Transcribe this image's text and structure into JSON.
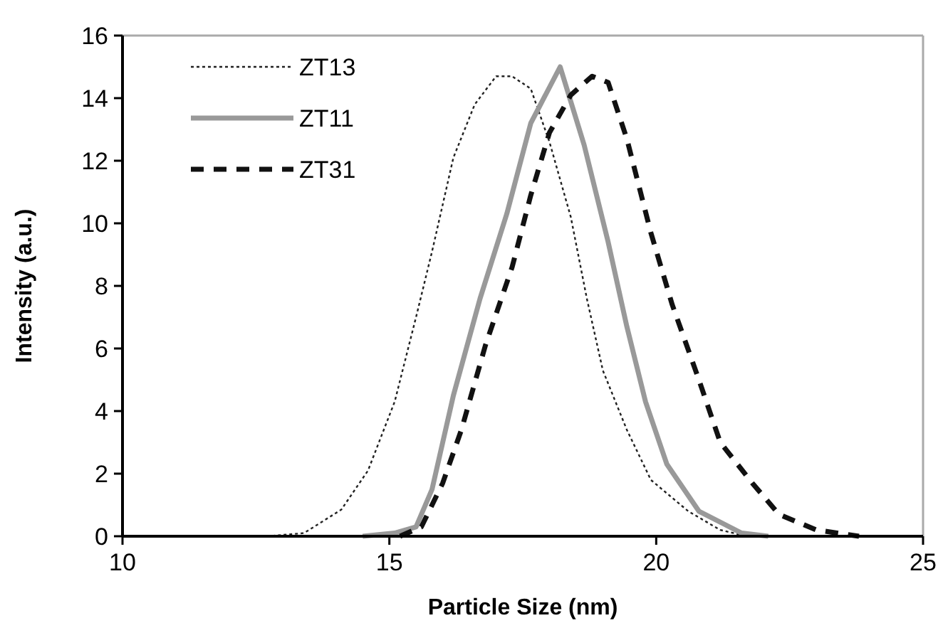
{
  "chart_data": {
    "type": "line",
    "xlabel": "Particle Size (nm)",
    "ylabel": "Intensity (a.u.)",
    "xlim": [
      10,
      25
    ],
    "xticks": [
      10,
      15,
      20,
      25
    ],
    "ylim": [
      0,
      16
    ],
    "yticks": [
      0,
      2,
      4,
      6,
      8,
      10,
      12,
      14,
      16
    ],
    "grid": false,
    "legend": "top left",
    "marker": "none",
    "series": [
      {
        "name": "ZT13",
        "color": "#222222",
        "line_style": "dotted",
        "x": [
          12.7,
          13.4,
          14.1,
          14.6,
          15.1,
          15.5,
          15.8,
          16.2,
          16.6,
          17.0,
          17.3,
          17.65,
          18.0,
          18.4,
          18.7,
          19.0,
          19.45,
          19.9,
          20.6,
          21.2,
          21.7
        ],
        "values": [
          0,
          0.1,
          0.85,
          2.1,
          4.3,
          7.0,
          9.1,
          12.1,
          13.8,
          14.7,
          14.7,
          14.3,
          12.6,
          10.2,
          7.6,
          5.3,
          3.4,
          1.8,
          0.8,
          0.2,
          0
        ]
      },
      {
        "name": "ZT11",
        "color": "#999999",
        "line_style": "solid",
        "x": [
          14.5,
          15.1,
          15.5,
          15.8,
          16.2,
          16.7,
          17.2,
          17.65,
          18.2,
          18.65,
          19.1,
          19.45,
          19.8,
          20.2,
          20.8,
          21.6,
          22.1
        ],
        "values": [
          0,
          0.1,
          0.3,
          1.5,
          4.5,
          7.6,
          10.3,
          13.2,
          15.0,
          12.5,
          9.4,
          6.7,
          4.3,
          2.3,
          0.8,
          0.1,
          0
        ]
      },
      {
        "name": "ZT31",
        "color": "#111111",
        "line_style": "dashed",
        "x": [
          15.2,
          15.6,
          16.0,
          16.35,
          16.8,
          17.3,
          17.65,
          18.0,
          18.4,
          18.8,
          19.1,
          19.45,
          19.9,
          20.3,
          20.8,
          21.2,
          21.8,
          22.3,
          23.0,
          23.8
        ],
        "values": [
          0,
          0.3,
          1.7,
          3.4,
          6.1,
          8.6,
          10.9,
          12.9,
          14.1,
          14.7,
          14.5,
          12.7,
          9.7,
          7.4,
          5.0,
          3.0,
          1.7,
          0.7,
          0.2,
          0
        ]
      }
    ]
  }
}
